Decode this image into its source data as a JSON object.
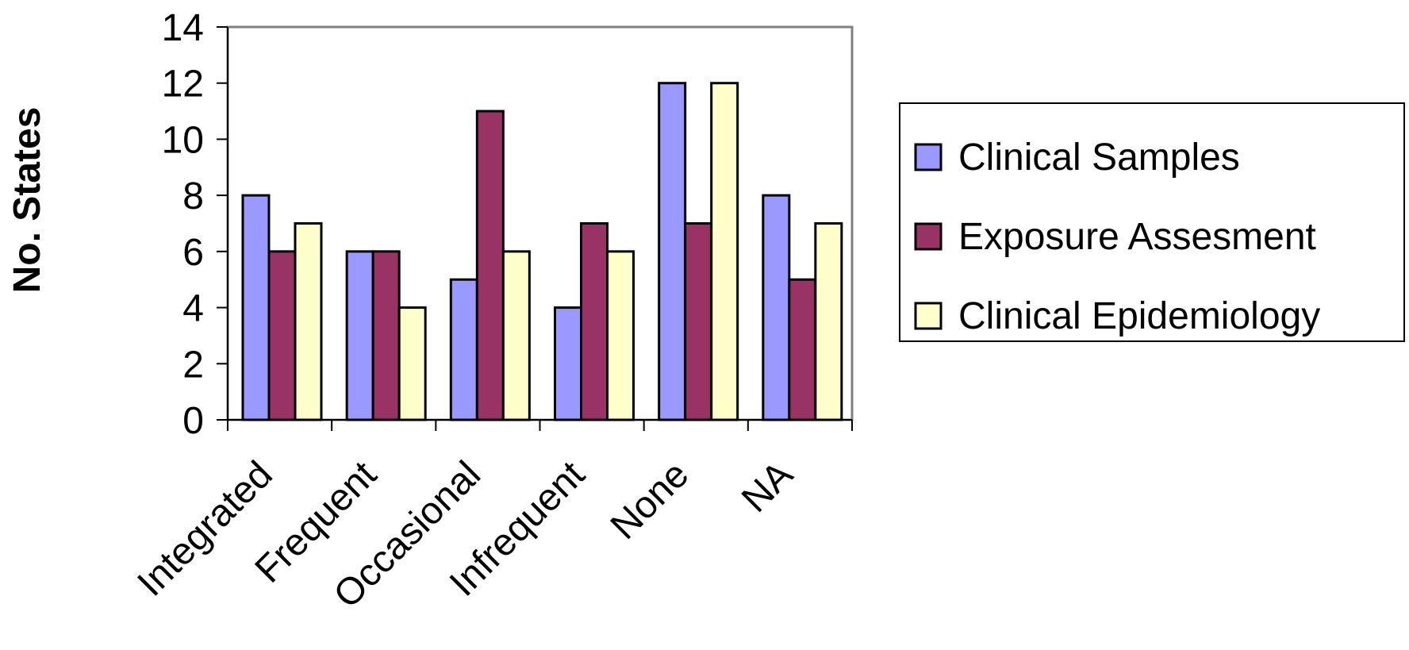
{
  "chart_data": {
    "type": "bar",
    "title": "",
    "xlabel": "",
    "ylabel": "No. States",
    "categories": [
      "Integrated",
      "Frequent",
      "Occasional",
      "Infrequent",
      "None",
      "NA"
    ],
    "series": [
      {
        "name": "Clinical Samples",
        "values": [
          8,
          6,
          5,
          4,
          12,
          8
        ],
        "color": "#9999FF"
      },
      {
        "name": "Exposure Assesment",
        "values": [
          6,
          6,
          11,
          7,
          7,
          5
        ],
        "color": "#993366"
      },
      {
        "name": "Clinical Epidemiology",
        "values": [
          7,
          4,
          6,
          6,
          12,
          7
        ],
        "color": "#FFFFCC"
      }
    ],
    "yticks": [
      "0",
      "2",
      "4",
      "6",
      "8",
      "10",
      "12",
      "14"
    ],
    "ylim": [
      0,
      14
    ],
    "grid": false,
    "legend_position": "right"
  }
}
